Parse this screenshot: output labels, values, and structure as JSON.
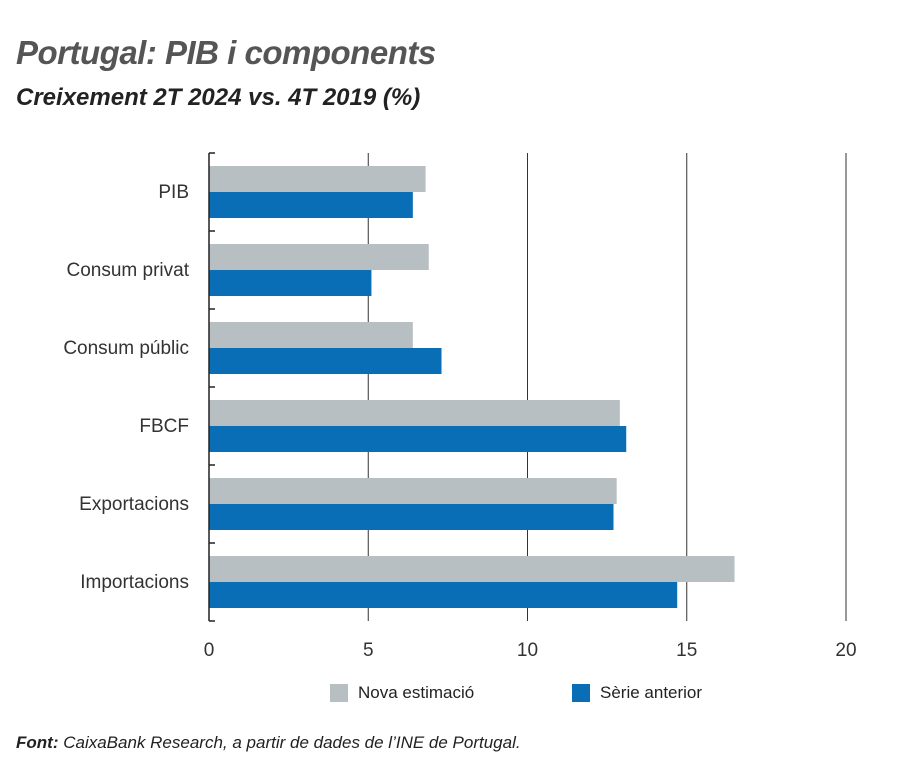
{
  "title": "Portugal: PIB i components",
  "subtitle": "Creixement 2T 2024 vs. 4T 2019 (%)",
  "source": {
    "label": "Font:",
    "text": "CaixaBank Research, a partir de dades de l’INE de Portugal."
  },
  "colors": {
    "nova": "#b8bfc3",
    "anterior": "#0a6eb6",
    "grid": "#333333",
    "axis": "#222222"
  },
  "chart_data": {
    "type": "bar",
    "orientation": "horizontal",
    "categories": [
      "PIB",
      "Consum privat",
      "Consum públic",
      "FBCF",
      "Exportacions",
      "Importacions"
    ],
    "series": [
      {
        "name": "Nova estimació",
        "values": [
          6.8,
          6.9,
          6.4,
          12.9,
          12.8,
          16.5
        ]
      },
      {
        "name": "Sèrie anterior",
        "values": [
          6.4,
          5.1,
          7.3,
          13.1,
          12.7,
          14.7
        ]
      }
    ],
    "xlim": [
      0,
      20
    ],
    "xticks": [
      "0",
      "5",
      "10",
      "15",
      "20"
    ],
    "grid": true,
    "legend": "bottom"
  }
}
